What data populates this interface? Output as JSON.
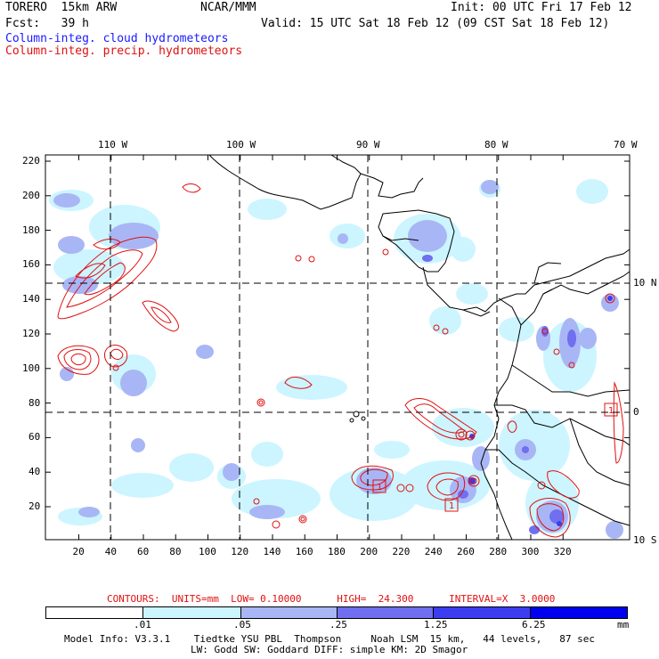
{
  "header": {
    "model": "TORERO  15km ARW",
    "org": "NCAR/MMM",
    "init": "Init: 00 UTC Fri 17 Feb 12",
    "fcst": "Fcst:   39 h",
    "valid": "Valid: 15 UTC Sat 18 Feb 12 (09 CST Sat 18 Feb 12)"
  },
  "legend": {
    "cloud": "Column-integ. cloud hydrometeors",
    "precip": "Column-integ. precip. hydrometeors",
    "cloud_color": "#1a1aff",
    "precip_color": "#e01010"
  },
  "map": {
    "top_lon_labels": [
      "110 W",
      "100 W",
      "90 W",
      "80 W",
      "70 W"
    ],
    "right_lat_labels": [
      "10 N",
      "0",
      "10 S"
    ],
    "y_ticks": [
      "220",
      "200",
      "180",
      "160",
      "140",
      "120",
      "100",
      "80",
      "60",
      "40",
      "20"
    ],
    "x_ticks": [
      "20",
      "40",
      "60",
      "80",
      "100",
      "120",
      "140",
      "160",
      "180",
      "200",
      "220",
      "240",
      "260",
      "280",
      "300",
      "320"
    ]
  },
  "contours": {
    "text": "CONTOURS:  UNITS=mm  LOW= 0.10000      HIGH=  24.300      INTERVAL=X  3.0000"
  },
  "colorbar": {
    "labels": [
      ".01",
      ".05",
      ".25",
      "1.25",
      "6.25"
    ],
    "unit": "mm",
    "colors": [
      "#ffffff",
      "#ccf5ff",
      "#a9b6f5",
      "#6f6ff0",
      "#3c3cf0",
      "#0000ee"
    ]
  },
  "footer": {
    "line1": "Model Info: V3.3.1    Tiedtke YSU PBL  Thompson     Noah LSM  15 km,   44 levels,   87 sec",
    "line2": "LW: Godd SW: Goddard DIFF: simple KM: 2D Smagor"
  }
}
